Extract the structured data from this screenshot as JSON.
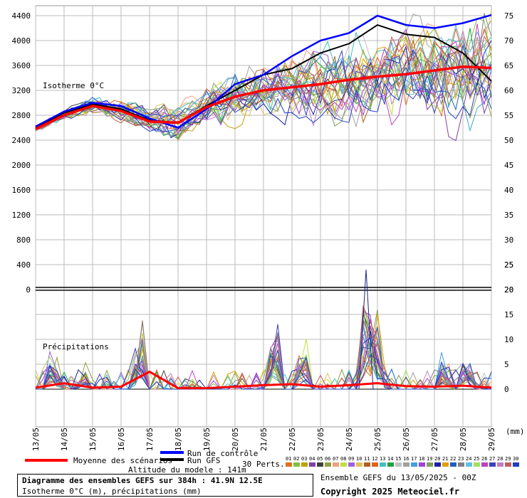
{
  "chart_data": [
    {
      "type": "line",
      "title": "Isotherme 0°C",
      "x": [
        "13/05",
        "14/05",
        "15/05",
        "16/05",
        "17/05",
        "18/05",
        "19/05",
        "20/05",
        "21/05",
        "22/05",
        "23/05",
        "24/05",
        "25/05",
        "26/05",
        "27/05",
        "28/05",
        "29/05"
      ],
      "ylabel": "",
      "y_left_ticks": [
        0,
        400,
        800,
        1200,
        1600,
        2000,
        2400,
        2800,
        3200,
        3600,
        4000,
        4400
      ],
      "y_right_ticks": [
        20,
        25,
        30,
        35,
        40,
        45,
        50,
        55,
        60,
        65,
        70,
        75
      ],
      "ylim": [
        0,
        4500
      ],
      "grid": true,
      "series": [
        {
          "name": "Moyenne des scénarios",
          "color": "#ff0000",
          "values": [
            2580,
            2800,
            2950,
            2870,
            2700,
            2680,
            2930,
            3100,
            3200,
            3250,
            3300,
            3370,
            3420,
            3460,
            3520,
            3580,
            3560
          ]
        },
        {
          "name": "Run de contrôle",
          "color": "#0000ff",
          "values": [
            2620,
            2860,
            3000,
            2950,
            2750,
            2600,
            2900,
            3300,
            3450,
            3750,
            4000,
            4120,
            4400,
            4250,
            4200,
            4280,
            4410
          ]
        },
        {
          "name": "Run GFS",
          "color": "#000000",
          "values": [
            2600,
            2840,
            2980,
            2900,
            2720,
            2680,
            2950,
            3200,
            3450,
            3550,
            3800,
            3950,
            4250,
            4100,
            4050,
            3800,
            3350
          ]
        }
      ]
    },
    {
      "type": "line",
      "title": "Précipitations",
      "x": [
        "13/05",
        "14/05",
        "15/05",
        "16/05",
        "17/05",
        "18/05",
        "19/05",
        "20/05",
        "21/05",
        "22/05",
        "23/05",
        "24/05",
        "25/05",
        "26/05",
        "27/05",
        "28/05",
        "29/05"
      ],
      "xlabel": "(mm)",
      "y_ticks": [
        0,
        5,
        10,
        15,
        20,
        25
      ],
      "ylim": [
        0,
        30
      ],
      "peaks": [
        {
          "day": 0.6,
          "value": 7.5
        },
        {
          "day": 1.7,
          "value": 4.0
        },
        {
          "day": 3.7,
          "value": 13.5
        },
        {
          "day": 8.4,
          "value": 16.5
        },
        {
          "day": 9.4,
          "value": 10.0
        },
        {
          "day": 11.6,
          "value": 24.0
        },
        {
          "day": 12.0,
          "value": 12.5
        },
        {
          "day": 14.3,
          "value": 6.5
        },
        {
          "day": 15.1,
          "value": 7.5
        }
      ],
      "series": [
        {
          "name": "Moyenne des scénarios",
          "color": "#ff0000",
          "values": [
            0.3,
            1.2,
            0.3,
            0.5,
            3.5,
            0.2,
            0.2,
            0.5,
            0.8,
            1.0,
            0.5,
            0.8,
            1.2,
            0.6,
            0.5,
            0.7,
            0.3
          ]
        }
      ]
    }
  ],
  "labels": {
    "isotherme": "Isotherme 0°C",
    "precipitations": "Précipitations",
    "mm": "(mm)"
  },
  "legend": {
    "mean": "Moyenne des scénarios",
    "control": "Run de contrôle",
    "gfs": "Run GFS",
    "altitude": "Altitude du modele : 141m",
    "perts": "30 Perts.",
    "perts_numbers": [
      "01",
      "02",
      "03",
      "04",
      "05",
      "06",
      "07",
      "08",
      "09",
      "10",
      "11",
      "12",
      "13",
      "14",
      "15",
      "16",
      "17",
      "18",
      "19",
      "20",
      "21",
      "22",
      "23",
      "24",
      "25",
      "26",
      "27",
      "28",
      "29",
      "30"
    ],
    "perts_colors": [
      "#e07020",
      "#80c040",
      "#c0a000",
      "#8040a0",
      "#404040",
      "#90a040",
      "#f0a080",
      "#c0e040",
      "#a060e0",
      "#e0c060",
      "#b06020",
      "#e06020",
      "#40c0c0",
      "#20a040",
      "#c0c0c0",
      "#a0a0a0",
      "#40a0e0",
      "#a040e0",
      "#80a060",
      "#2020a0",
      "#e0a000",
      "#2060c0",
      "#808080",
      "#60c0e0",
      "#a0e060",
      "#c040c0",
      "#4040c0",
      "#c080c0",
      "#c06060",
      "#2040c0"
    ]
  },
  "footer": {
    "title": "Diagramme des ensembles GEFS sur 384h : 41.9N 12.5E",
    "subtitle": "Isotherme 0°C (m), précipitations (mm)",
    "run": "Ensemble GEFS du 13/05/2025 - 00Z",
    "copyright": "Copyright 2025 Meteociel.fr"
  }
}
